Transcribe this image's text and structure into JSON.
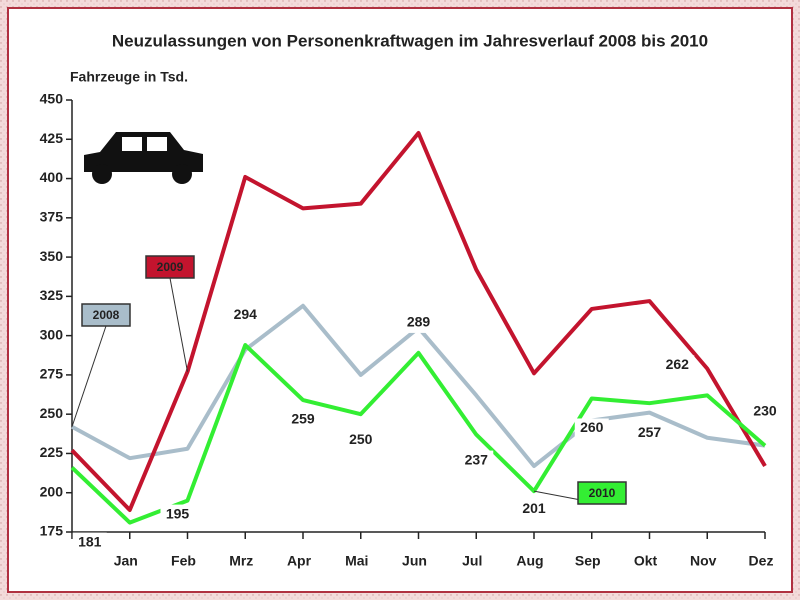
{
  "chart_data": {
    "type": "line",
    "title": "Neuzulassungen von Personenkraftwagen im Jahresverlauf 2008 bis 2010",
    "y_label": "Fahrzeuge in Tsd.",
    "categories": [
      null,
      "Jan",
      "Feb",
      "Mrz",
      "Apr",
      "Mai",
      "Jun",
      "Jul",
      "Aug",
      "Sep",
      "Okt",
      "Nov",
      "Dez"
    ],
    "series": [
      {
        "name": "2008",
        "color": "#a9bdca",
        "values": [
          242,
          222,
          228,
          291,
          319,
          275,
          305,
          262,
          217,
          246,
          251,
          235,
          230
        ]
      },
      {
        "name": "2009",
        "color": "#c3142e",
        "values": [
          227,
          189,
          277,
          401,
          381,
          384,
          429,
          342,
          276,
          317,
          322,
          279,
          217
        ]
      },
      {
        "name": "2010",
        "color": "#33ee33",
        "values": [
          216,
          181,
          195,
          294,
          259,
          250,
          289,
          237,
          201,
          260,
          257,
          262,
          230
        ],
        "data_labels": true
      }
    ],
    "ylim": [
      175,
      450
    ],
    "yticks": [
      175,
      200,
      225,
      250,
      275,
      300,
      325,
      350,
      375,
      400,
      425,
      450
    ]
  }
}
